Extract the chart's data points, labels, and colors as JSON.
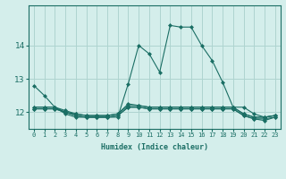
{
  "xlabel": "Humidex (Indice chaleur)",
  "ylabel": "",
  "background_color": "#d4eeeb",
  "grid_color": "#aed4d0",
  "line_color": "#1a6e64",
  "x": [
    0,
    1,
    2,
    3,
    4,
    5,
    6,
    7,
    8,
    9,
    10,
    11,
    12,
    13,
    14,
    15,
    16,
    17,
    18,
    19,
    20,
    21,
    22,
    23
  ],
  "series": [
    [
      12.8,
      12.5,
      12.15,
      11.95,
      11.85,
      11.85,
      11.85,
      11.85,
      11.85,
      12.85,
      14.0,
      13.75,
      13.2,
      14.6,
      14.55,
      14.55,
      14.0,
      13.55,
      12.9,
      12.15,
      12.15,
      11.95,
      11.85,
      11.9
    ],
    [
      12.15,
      12.15,
      12.15,
      12.0,
      11.95,
      11.9,
      11.9,
      11.9,
      11.95,
      12.25,
      12.2,
      12.15,
      12.15,
      12.15,
      12.15,
      12.15,
      12.15,
      12.15,
      12.15,
      12.15,
      11.95,
      11.85,
      11.85,
      11.9
    ],
    [
      12.15,
      12.15,
      12.15,
      12.05,
      11.95,
      11.9,
      11.9,
      11.9,
      11.95,
      12.2,
      12.2,
      12.15,
      12.15,
      12.15,
      12.15,
      12.15,
      12.15,
      12.15,
      12.15,
      12.15,
      11.95,
      11.85,
      11.85,
      11.9
    ],
    [
      12.1,
      12.1,
      12.1,
      12.0,
      11.9,
      11.85,
      11.85,
      11.85,
      11.9,
      12.15,
      12.15,
      12.1,
      12.1,
      12.1,
      12.1,
      12.1,
      12.1,
      12.1,
      12.1,
      12.1,
      11.9,
      11.8,
      11.8,
      11.85
    ],
    [
      12.1,
      12.1,
      12.1,
      12.0,
      11.9,
      11.85,
      11.85,
      11.85,
      11.9,
      12.15,
      12.15,
      12.1,
      12.1,
      12.1,
      12.1,
      12.1,
      12.1,
      12.1,
      12.1,
      12.1,
      11.9,
      11.8,
      11.75,
      11.85
    ]
  ],
  "ylim": [
    11.5,
    15.2
  ],
  "yticks": [
    12,
    13,
    14
  ],
  "xticks": [
    0,
    1,
    2,
    3,
    4,
    5,
    6,
    7,
    8,
    9,
    10,
    11,
    12,
    13,
    14,
    15,
    16,
    17,
    18,
    19,
    20,
    21,
    22,
    23
  ],
  "xlabel_fontsize": 6.0,
  "xticklabel_fontsize": 5.0,
  "yticklabel_fontsize": 6.5
}
